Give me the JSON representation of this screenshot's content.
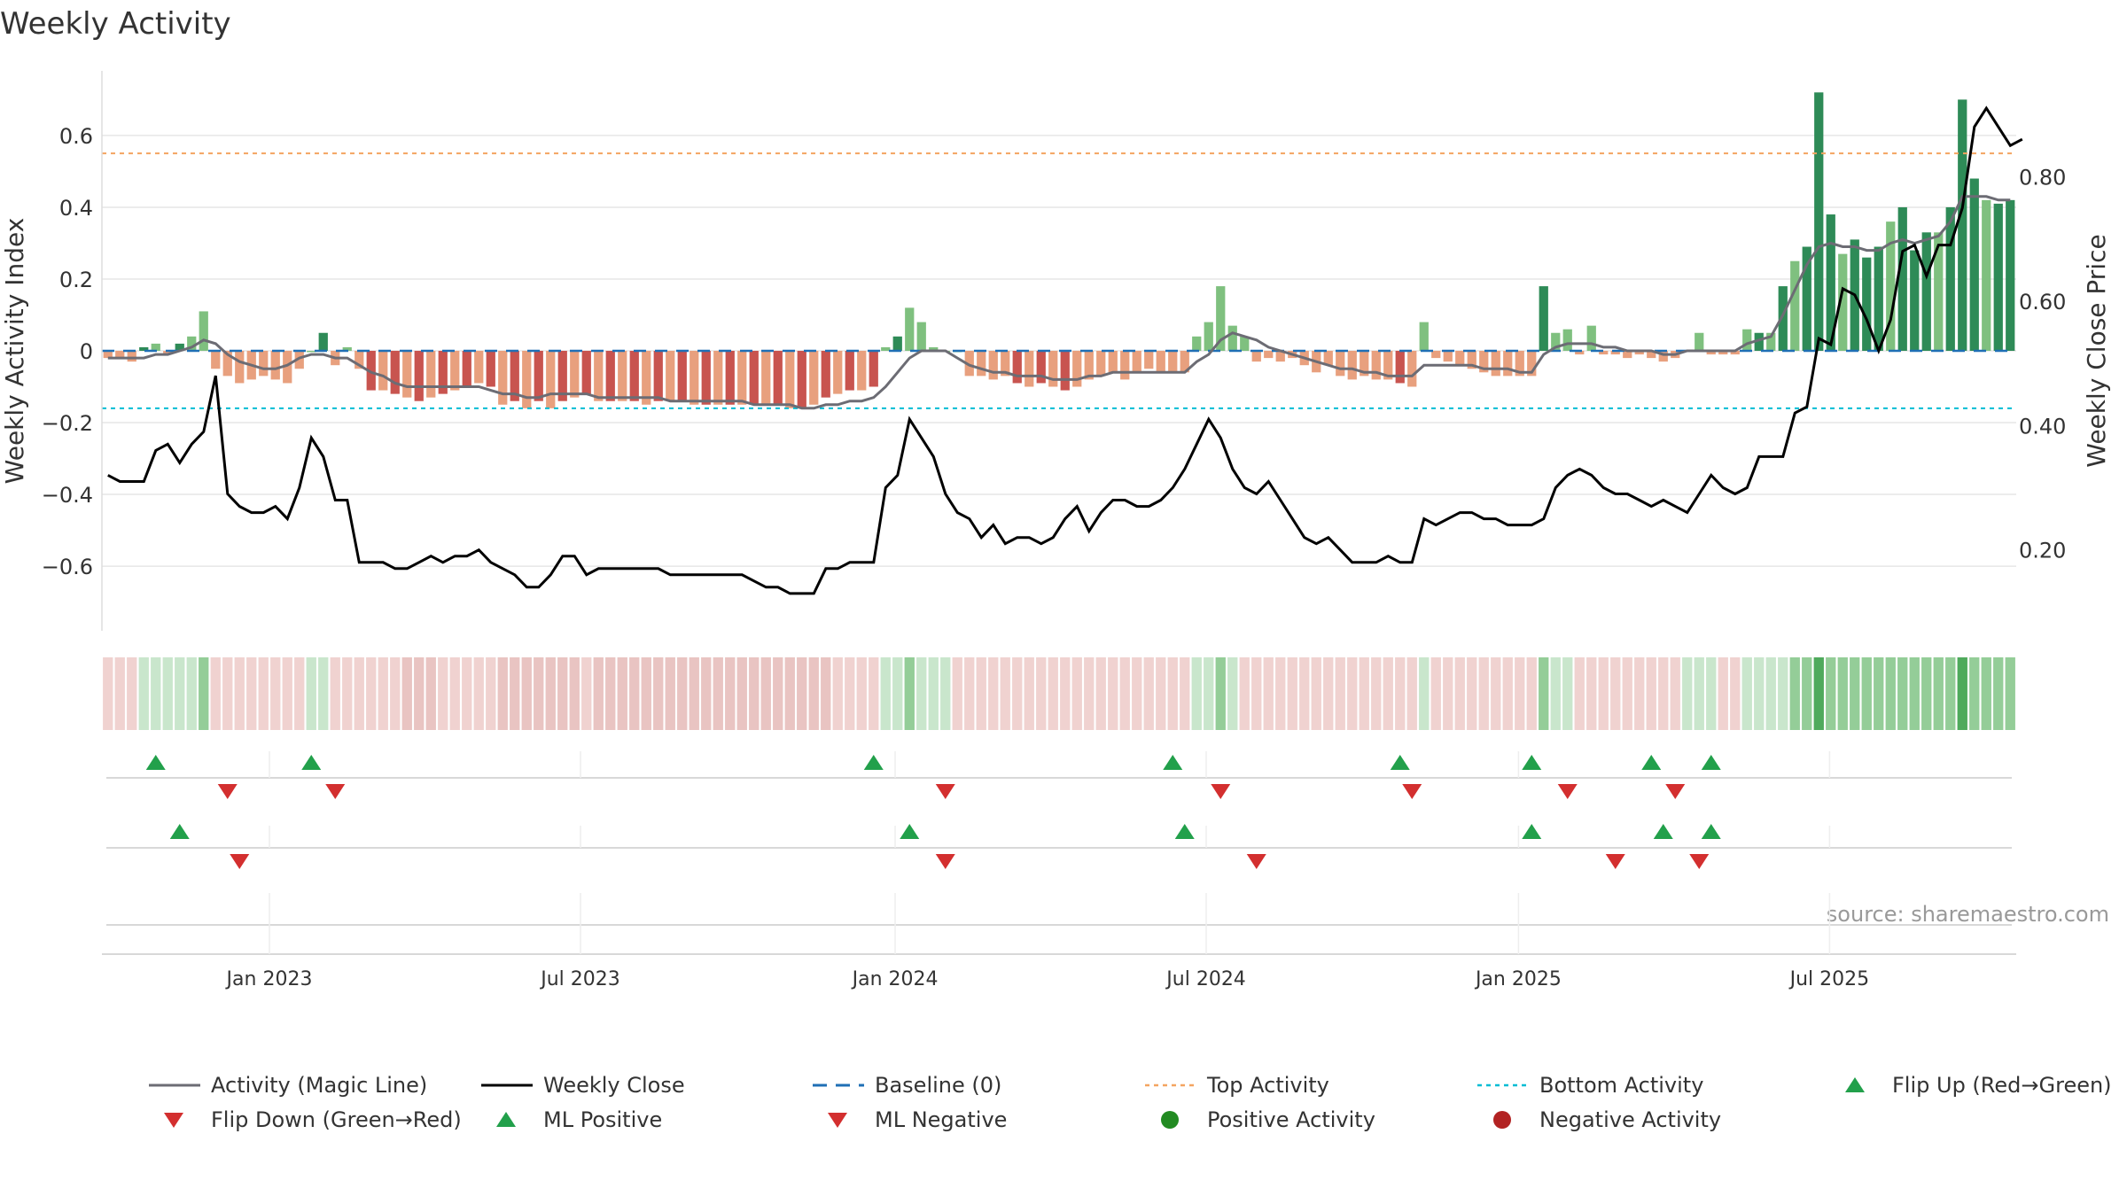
{
  "title": "Weekly Activity",
  "source": "source: sharemaestro.com",
  "colors": {
    "up_strong": "#2e8b57",
    "up_light": "#7fc07f",
    "down_strong": "#c8544f",
    "down_light": "#e8a07e",
    "magic_line": "#6c6c74",
    "close_line": "#000000",
    "baseline": "#1f6fb5",
    "top": "#f4a460",
    "bottom": "#00bcd4",
    "flip_up": "#22a04b",
    "flip_down": "#d32f2f",
    "pos_dot": "#228b22",
    "neg_dot": "#b22222",
    "grid": "#e6e6e6"
  },
  "chart_data": {
    "type": "bar",
    "title": "Weekly Activity",
    "ylabel": "Weekly Activity Index",
    "y2label": "Weekly Close Price",
    "ylim": [
      -0.78,
      0.78
    ],
    "y2lim": [
      0.07,
      0.97
    ],
    "yticks": [
      "0.6",
      "0.4",
      "0.2",
      "0",
      "−0.2",
      "−0.4",
      "−0.6"
    ],
    "ytick_values": [
      0.6,
      0.4,
      0.2,
      0,
      -0.2,
      -0.4,
      -0.6
    ],
    "y2ticks": [
      "0.80",
      "0.60",
      "0.40",
      "0.20"
    ],
    "y2tick_values": [
      0.8,
      0.6,
      0.4,
      0.2
    ],
    "xticks": [
      "Jan 2023",
      "Jul 2023",
      "Jan 2024",
      "Jul 2024",
      "Jan 2025",
      "Jul 2025"
    ],
    "xtick_weeks": [
      14,
      40,
      66.3,
      92.3,
      118.4,
      144.4
    ],
    "top_activity": 0.55,
    "bottom_activity": -0.16,
    "activity": [
      -0.02,
      -0.02,
      -0.03,
      0.01,
      0.02,
      -0.01,
      0.02,
      0.04,
      0.11,
      -0.05,
      -0.07,
      -0.09,
      -0.08,
      -0.07,
      -0.08,
      -0.09,
      -0.05,
      0.0,
      0.05,
      -0.04,
      0.01,
      -0.05,
      -0.11,
      -0.11,
      -0.12,
      -0.13,
      -0.14,
      -0.13,
      -0.12,
      -0.11,
      -0.1,
      -0.09,
      -0.1,
      -0.15,
      -0.14,
      -0.16,
      -0.14,
      -0.16,
      -0.14,
      -0.13,
      -0.12,
      -0.14,
      -0.14,
      -0.14,
      -0.14,
      -0.15,
      -0.14,
      -0.14,
      -0.14,
      -0.15,
      -0.15,
      -0.15,
      -0.15,
      -0.15,
      -0.15,
      -0.15,
      -0.15,
      -0.16,
      -0.16,
      -0.15,
      -0.13,
      -0.12,
      -0.11,
      -0.11,
      -0.1,
      0.01,
      0.04,
      0.12,
      0.08,
      0.01,
      0.0,
      0.0,
      -0.07,
      -0.07,
      -0.08,
      -0.07,
      -0.09,
      -0.1,
      -0.09,
      -0.1,
      -0.11,
      -0.1,
      -0.08,
      -0.07,
      -0.06,
      -0.08,
      -0.06,
      -0.05,
      -0.06,
      -0.06,
      -0.06,
      0.04,
      0.08,
      0.18,
      0.07,
      0.04,
      -0.03,
      -0.02,
      -0.03,
      -0.02,
      -0.04,
      -0.06,
      -0.04,
      -0.07,
      -0.08,
      -0.07,
      -0.08,
      -0.08,
      -0.09,
      -0.1,
      0.08,
      -0.02,
      -0.03,
      -0.04,
      -0.05,
      -0.06,
      -0.07,
      -0.07,
      -0.07,
      -0.07,
      0.18,
      0.05,
      0.06,
      -0.01,
      0.07,
      -0.01,
      -0.01,
      -0.02,
      -0.01,
      -0.02,
      -0.03,
      -0.02,
      0.0,
      0.05,
      -0.01,
      -0.01,
      -0.01,
      0.06,
      0.05,
      0.05,
      0.18,
      0.25,
      0.29,
      0.72,
      0.38,
      0.27,
      0.31,
      0.26,
      0.29,
      0.36,
      0.4,
      0.28,
      0.33,
      0.33,
      0.4,
      0.7,
      0.48,
      0.42,
      0.41,
      0.42
    ],
    "magic_line": [
      -0.02,
      -0.02,
      -0.02,
      -0.02,
      -0.01,
      -0.01,
      0.0,
      0.01,
      0.03,
      0.02,
      -0.01,
      -0.03,
      -0.04,
      -0.05,
      -0.05,
      -0.04,
      -0.02,
      -0.01,
      -0.01,
      -0.02,
      -0.02,
      -0.04,
      -0.06,
      -0.07,
      -0.09,
      -0.1,
      -0.1,
      -0.1,
      -0.1,
      -0.1,
      -0.1,
      -0.1,
      -0.11,
      -0.12,
      -0.12,
      -0.13,
      -0.13,
      -0.12,
      -0.12,
      -0.12,
      -0.12,
      -0.13,
      -0.13,
      -0.13,
      -0.13,
      -0.13,
      -0.13,
      -0.14,
      -0.14,
      -0.14,
      -0.14,
      -0.14,
      -0.14,
      -0.14,
      -0.15,
      -0.15,
      -0.15,
      -0.15,
      -0.16,
      -0.16,
      -0.15,
      -0.15,
      -0.14,
      -0.14,
      -0.13,
      -0.1,
      -0.06,
      -0.02,
      0.0,
      0.0,
      0.0,
      -0.02,
      -0.04,
      -0.05,
      -0.06,
      -0.06,
      -0.07,
      -0.07,
      -0.07,
      -0.08,
      -0.08,
      -0.08,
      -0.07,
      -0.07,
      -0.06,
      -0.06,
      -0.06,
      -0.06,
      -0.06,
      -0.06,
      -0.06,
      -0.03,
      -0.01,
      0.03,
      0.05,
      0.04,
      0.03,
      0.01,
      0.0,
      -0.01,
      -0.02,
      -0.03,
      -0.04,
      -0.05,
      -0.05,
      -0.06,
      -0.06,
      -0.07,
      -0.07,
      -0.07,
      -0.04,
      -0.04,
      -0.04,
      -0.04,
      -0.04,
      -0.05,
      -0.05,
      -0.05,
      -0.06,
      -0.06,
      -0.01,
      0.01,
      0.02,
      0.02,
      0.02,
      0.01,
      0.01,
      0.0,
      0.0,
      0.0,
      -0.01,
      -0.01,
      0.0,
      0.0,
      0.0,
      0.0,
      0.0,
      0.02,
      0.03,
      0.04,
      0.1,
      0.17,
      0.24,
      0.29,
      0.3,
      0.29,
      0.29,
      0.28,
      0.28,
      0.3,
      0.31,
      0.3,
      0.31,
      0.32,
      0.36,
      0.43,
      0.43,
      0.43,
      0.42,
      0.42
    ],
    "weekly_close": [
      0.32,
      0.31,
      0.31,
      0.31,
      0.36,
      0.37,
      0.34,
      0.37,
      0.39,
      0.48,
      0.29,
      0.27,
      0.26,
      0.26,
      0.27,
      0.25,
      0.3,
      0.38,
      0.35,
      0.28,
      0.28,
      0.18,
      0.18,
      0.18,
      0.17,
      0.17,
      0.18,
      0.19,
      0.18,
      0.19,
      0.19,
      0.2,
      0.18,
      0.17,
      0.16,
      0.14,
      0.14,
      0.16,
      0.19,
      0.19,
      0.16,
      0.17,
      0.17,
      0.17,
      0.17,
      0.17,
      0.17,
      0.16,
      0.16,
      0.16,
      0.16,
      0.16,
      0.16,
      0.16,
      0.15,
      0.14,
      0.14,
      0.13,
      0.13,
      0.13,
      0.17,
      0.17,
      0.18,
      0.18,
      0.18,
      0.3,
      0.32,
      0.41,
      0.38,
      0.35,
      0.29,
      0.26,
      0.25,
      0.22,
      0.24,
      0.21,
      0.22,
      0.22,
      0.21,
      0.22,
      0.25,
      0.27,
      0.23,
      0.26,
      0.28,
      0.28,
      0.27,
      0.27,
      0.28,
      0.3,
      0.33,
      0.37,
      0.41,
      0.38,
      0.33,
      0.3,
      0.29,
      0.31,
      0.28,
      0.25,
      0.22,
      0.21,
      0.22,
      0.2,
      0.18,
      0.18,
      0.18,
      0.19,
      0.18,
      0.18,
      0.25,
      0.24,
      0.25,
      0.26,
      0.26,
      0.25,
      0.25,
      0.24,
      0.24,
      0.24,
      0.25,
      0.3,
      0.32,
      0.33,
      0.32,
      0.3,
      0.29,
      0.29,
      0.28,
      0.27,
      0.28,
      0.27,
      0.26,
      0.29,
      0.32,
      0.3,
      0.29,
      0.3,
      0.35,
      0.35,
      0.35,
      0.42,
      0.43,
      0.54,
      0.53,
      0.62,
      0.61,
      0.57,
      0.52,
      0.57,
      0.68,
      0.69,
      0.64,
      0.69,
      0.69,
      0.75,
      0.88,
      0.91,
      0.88,
      0.85,
      0.86
    ],
    "strip_intensity": [
      1,
      1,
      1,
      2,
      2,
      2,
      2,
      2,
      3,
      1,
      1,
      1,
      1,
      1,
      1,
      1,
      1,
      2,
      2,
      1,
      1,
      1,
      1,
      1,
      1,
      1,
      1,
      1,
      1,
      1,
      1,
      1,
      1,
      1,
      1,
      1,
      1,
      1,
      1,
      1,
      1,
      1,
      1,
      1,
      1,
      1,
      1,
      1,
      1,
      1,
      1,
      1,
      1,
      1,
      1,
      1,
      1,
      1,
      1,
      1,
      1,
      1,
      1,
      1,
      1,
      2,
      2,
      3,
      2,
      2,
      2,
      1,
      1,
      1,
      1,
      1,
      1,
      1,
      1,
      1,
      1,
      1,
      1,
      1,
      1,
      1,
      1,
      1,
      1,
      1,
      1,
      2,
      2,
      3,
      2,
      1,
      1,
      1,
      1,
      1,
      1,
      1,
      1,
      1,
      1,
      1,
      1,
      1,
      1,
      1,
      2,
      1,
      1,
      1,
      1,
      1,
      1,
      1,
      1,
      1,
      3,
      2,
      2,
      1,
      1,
      1,
      1,
      1,
      1,
      1,
      1,
      1,
      2,
      2,
      2,
      1,
      1,
      2,
      2,
      2,
      2,
      3,
      3,
      4,
      3,
      3,
      3,
      3,
      3,
      3,
      3,
      3,
      3,
      3,
      3,
      4,
      3,
      3,
      3,
      3
    ],
    "flip_up_weeks": [
      4,
      17,
      64,
      89,
      108,
      119,
      129,
      134
    ],
    "flip_down_weeks": [
      10,
      19,
      70,
      93,
      109,
      122,
      131
    ],
    "ml_positive_weeks": [
      6,
      67,
      90,
      119,
      130,
      134
    ],
    "ml_negative_weeks": [
      11,
      70,
      96,
      126,
      133
    ],
    "legend": [
      "Activity (Magic Line)",
      "Weekly Close",
      "Baseline (0)",
      "Top Activity",
      "Bottom Activity",
      "Flip Up (Red→Green)",
      "Flip Down (Green→Red)",
      "ML Positive",
      "ML Negative",
      "Positive Activity",
      "Negative Activity"
    ]
  }
}
